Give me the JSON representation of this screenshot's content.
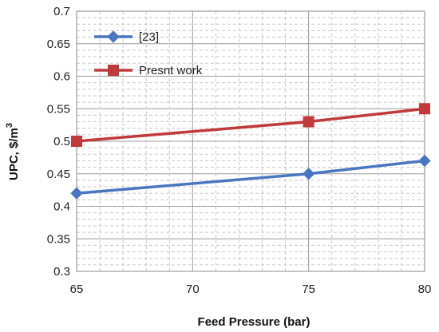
{
  "chart_data": {
    "type": "line",
    "title": "",
    "xlabel": "Feed Pressure (bar)",
    "ylabel_parts": [
      "UPC, $/m",
      "3"
    ],
    "xlim": [
      65,
      80
    ],
    "ylim": [
      0.3,
      0.7
    ],
    "xticks": [
      "65",
      "70",
      "75",
      "80"
    ],
    "yticks": [
      "0.3",
      "0.35",
      "0.4",
      "0.45",
      "0.5",
      "0.55",
      "0.6",
      "0.65",
      "0.7"
    ],
    "grid": true,
    "legend_position": "top-left",
    "series": [
      {
        "name": "[23]",
        "marker": "diamond",
        "color": "#4a76c0",
        "x": [
          65,
          75,
          80
        ],
        "y": [
          0.42,
          0.45,
          0.47
        ]
      },
      {
        "name": "Presnt work",
        "marker": "square",
        "color": "#c0393b",
        "x": [
          65,
          75,
          80
        ],
        "y": [
          0.5,
          0.53,
          0.55
        ]
      }
    ]
  }
}
